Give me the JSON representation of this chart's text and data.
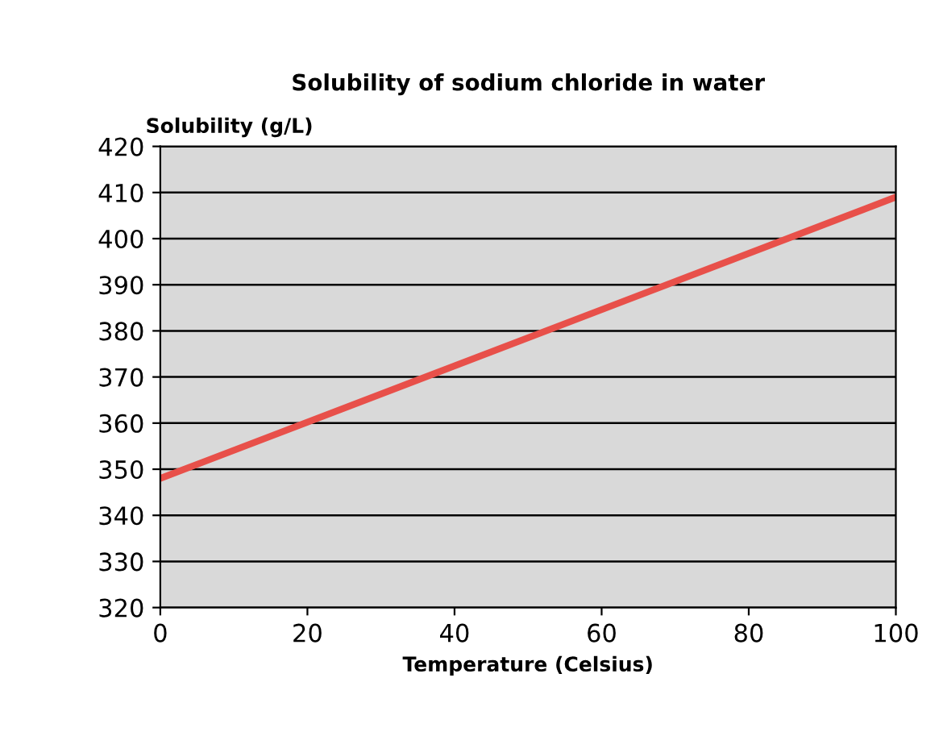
{
  "chart_data": {
    "type": "line",
    "title": "Solubility of sodium chloride in water",
    "xlabel": "Temperature (Celsius)",
    "ylabel": "Solubility (g/L)",
    "x": [
      0,
      100
    ],
    "series": [
      {
        "color": "#e8504a",
        "values": [
          348,
          409
        ]
      }
    ],
    "xlim": [
      0,
      100
    ],
    "xticks": [
      0,
      20,
      40,
      60,
      80,
      100
    ],
    "ylim": [
      320,
      420
    ],
    "yticks": [
      320,
      330,
      340,
      350,
      360,
      370,
      380,
      390,
      400,
      410,
      420
    ],
    "grid": "y",
    "marker": "none",
    "line_style": "solid",
    "legend": false
  }
}
